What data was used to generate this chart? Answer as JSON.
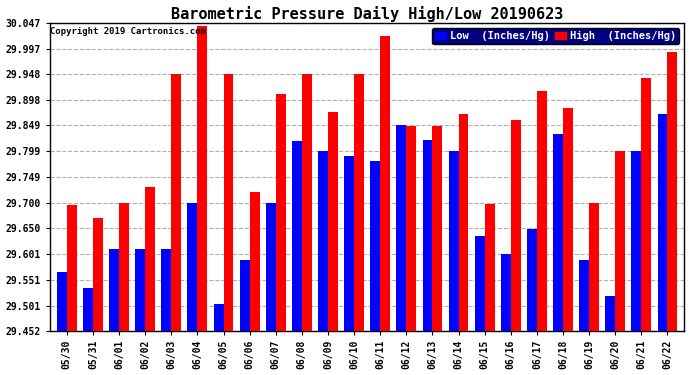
{
  "title": "Barometric Pressure Daily High/Low 20190623",
  "copyright": "Copyright 2019 Cartronics.com",
  "legend_low": "Low  (Inches/Hg)",
  "legend_high": "High  (Inches/Hg)",
  "dates": [
    "05/30",
    "05/31",
    "06/01",
    "06/02",
    "06/03",
    "06/04",
    "06/05",
    "06/06",
    "06/07",
    "06/08",
    "06/09",
    "06/10",
    "06/11",
    "06/12",
    "06/13",
    "06/14",
    "06/15",
    "06/16",
    "06/17",
    "06/18",
    "06/19",
    "06/20",
    "06/21",
    "06/22"
  ],
  "high": [
    29.695,
    29.67,
    29.7,
    29.73,
    29.948,
    30.04,
    29.948,
    29.72,
    29.91,
    29.948,
    29.875,
    29.948,
    30.022,
    29.848,
    29.848,
    29.87,
    29.698,
    29.86,
    29.915,
    29.882,
    29.7,
    29.8,
    29.94,
    29.99
  ],
  "low": [
    29.565,
    29.535,
    29.61,
    29.61,
    29.61,
    29.7,
    29.505,
    29.59,
    29.7,
    29.818,
    29.8,
    29.79,
    29.78,
    29.85,
    29.82,
    29.8,
    29.635,
    29.6,
    29.648,
    29.832,
    29.59,
    29.52,
    29.8,
    29.87
  ],
  "ymin": 29.452,
  "ymax": 30.047,
  "yticks": [
    29.452,
    29.501,
    29.551,
    29.601,
    29.65,
    29.7,
    29.749,
    29.799,
    29.849,
    29.898,
    29.948,
    29.997,
    30.047
  ],
  "bar_width": 0.38,
  "color_high": "#ff0000",
  "color_low": "#0000ff",
  "bg_color": "#ffffff",
  "grid_color": "#b0b0b0",
  "title_fontsize": 11,
  "tick_fontsize": 7,
  "legend_fontsize": 7.5,
  "copyright_fontsize": 6.5
}
